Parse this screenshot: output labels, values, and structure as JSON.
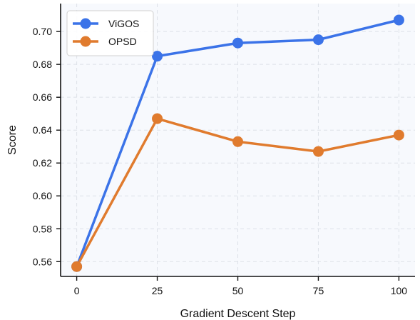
{
  "chart_data": {
    "type": "line",
    "title": "",
    "xlabel": "Gradient Descent Step",
    "ylabel": "Score",
    "x": [
      0,
      25,
      50,
      75,
      100
    ],
    "xlim": [
      -5,
      105
    ],
    "ylim": [
      0.551,
      0.717
    ],
    "xticks": [
      0,
      25,
      50,
      75,
      100
    ],
    "yticks": [
      0.56,
      0.58,
      0.6,
      0.62,
      0.64,
      0.66,
      0.68,
      0.7
    ],
    "yticks_labels": [
      "0.56",
      "0.58",
      "0.60",
      "0.62",
      "0.64",
      "0.66",
      "0.68",
      "0.70"
    ],
    "grid": true,
    "legend_position": "top-left",
    "series": [
      {
        "name": "ViGOS",
        "color": "#3b73e8",
        "values": [
          0.557,
          0.685,
          0.693,
          0.695,
          0.707
        ]
      },
      {
        "name": "OPSD",
        "color": "#e07b2e",
        "values": [
          0.557,
          0.647,
          0.633,
          0.627,
          0.637
        ]
      }
    ],
    "colors": {
      "plot_background": "#f7f9fd",
      "grid": "#dde1e8",
      "axis": "#111111"
    }
  }
}
